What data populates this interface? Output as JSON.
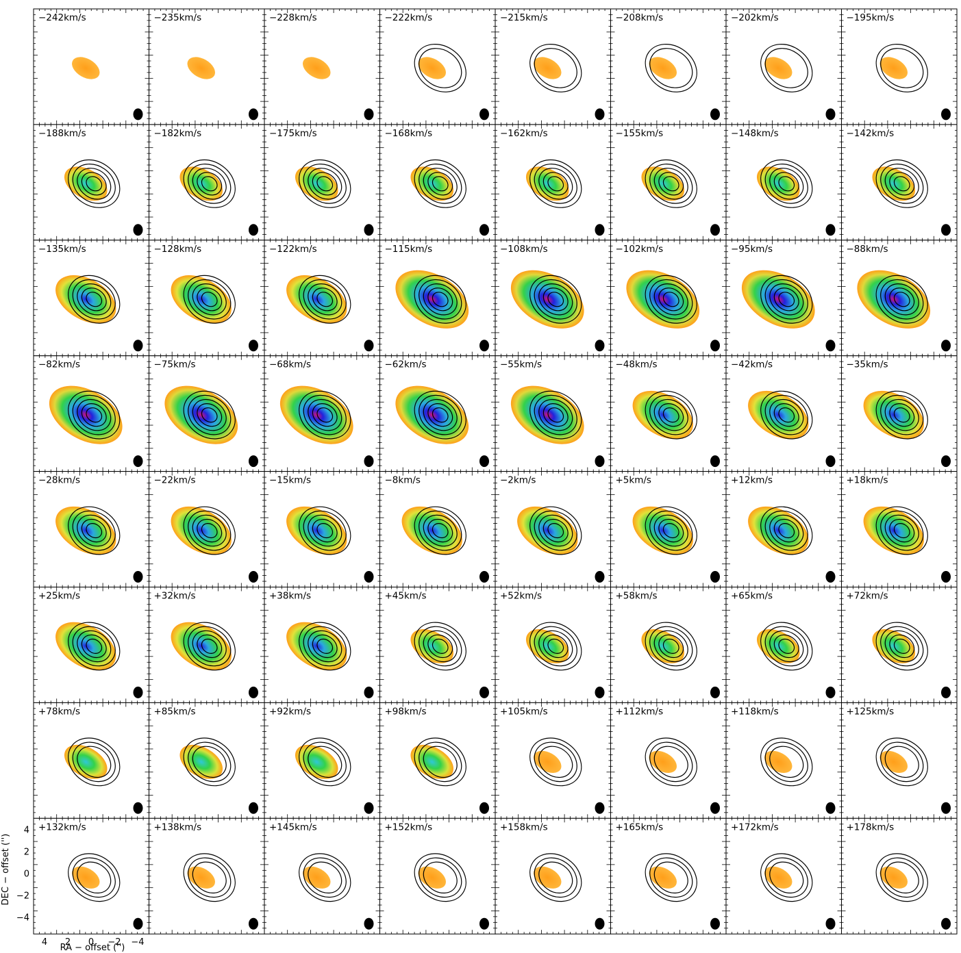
{
  "figure": {
    "channel_velocities": [
      "−242km/s",
      "−235km/s",
      "−228km/s",
      "−222km/s",
      "−215km/s",
      "−208km/s",
      "−202km/s",
      "−195km/s",
      "−188km/s",
      "−182km/s",
      "−175km/s",
      "−168km/s",
      "−162km/s",
      "−155km/s",
      "−148km/s",
      "−142km/s",
      "−135km/s",
      "−128km/s",
      "−122km/s",
      "−115km/s",
      "−108km/s",
      "−102km/s",
      "−95km/s",
      "−88km/s",
      "−82km/s",
      "−75km/s",
      "−68km/s",
      "−62km/s",
      "−55km/s",
      "−48km/s",
      "−42km/s",
      "−35km/s",
      "−28km/s",
      "−22km/s",
      "−15km/s",
      "−8km/s",
      "−2km/s",
      "+5km/s",
      "+12km/s",
      "+18km/s",
      "+25km/s",
      "+32km/s",
      "+38km/s",
      "+45km/s",
      "+52km/s",
      "+58km/s",
      "+65km/s",
      "+72km/s",
      "+78km/s",
      "+85km/s",
      "+92km/s",
      "+98km/s",
      "+105km/s",
      "+112km/s",
      "+118km/s",
      "+125km/s",
      "+132km/s",
      "+138km/s",
      "+145km/s",
      "+152km/s",
      "+158km/s",
      "+165km/s",
      "+172km/s",
      "+178km/s"
    ],
    "x_axis_label": "RA − offset ('')",
    "y_axis_label": "DEC − offset ('')",
    "x_tick_labels": [
      "4",
      "2",
      "0",
      "−2",
      "−4"
    ],
    "y_tick_labels": [
      "4",
      "2",
      "0",
      "−2",
      "−4"
    ],
    "colors": {
      "frame": "#000000",
      "contour": "#000000",
      "beam": "#000000",
      "emission_low": "#ff9f1a",
      "emission_mid": "#33d24a",
      "emission_high": "#2222dd",
      "emission_peak": "#d0147a"
    }
  }
}
